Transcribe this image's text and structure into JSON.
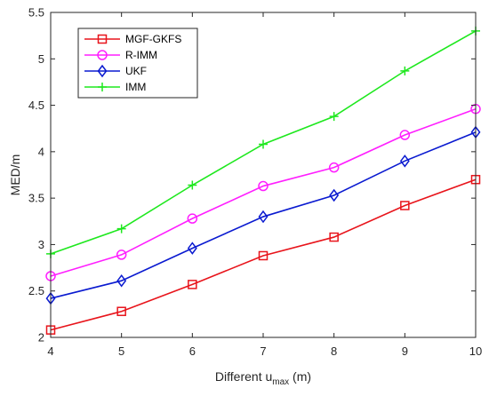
{
  "chart_data": {
    "type": "line",
    "x": [
      4,
      5,
      6,
      7,
      8,
      9,
      10
    ],
    "xlim": [
      4,
      10
    ],
    "ylim": [
      2,
      5.5
    ],
    "x_ticks": [
      "4",
      "5",
      "6",
      "7",
      "8",
      "9",
      "10"
    ],
    "y_ticks": [
      "2",
      "2.5",
      "3",
      "3.5",
      "4",
      "4.5",
      "5",
      "5.5"
    ],
    "xlabel": {
      "main": "Different u",
      "sub": "max",
      "unit": " (m)"
    },
    "ylabel": "MED/m",
    "grid": false,
    "legend_position": "top-left",
    "series": [
      {
        "name": "MGF-GKFS",
        "color": "#e8141b",
        "marker": "square",
        "values": [
          2.08,
          2.28,
          2.57,
          2.88,
          3.08,
          3.42,
          3.7
        ]
      },
      {
        "name": "R-IMM",
        "color": "#ff1eff",
        "marker": "circle",
        "values": [
          2.66,
          2.89,
          3.28,
          3.63,
          3.83,
          4.18,
          4.46
        ]
      },
      {
        "name": "UKF",
        "color": "#0a1ad0",
        "marker": "diamond",
        "values": [
          2.42,
          2.61,
          2.96,
          3.3,
          3.53,
          3.9,
          4.21
        ]
      },
      {
        "name": "IMM",
        "color": "#1ee81e",
        "marker": "plus",
        "values": [
          2.9,
          3.17,
          3.64,
          4.08,
          4.38,
          4.87,
          5.3
        ]
      }
    ]
  }
}
